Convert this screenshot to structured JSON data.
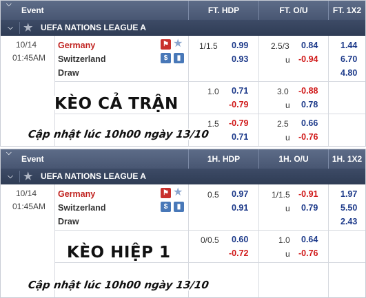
{
  "panels": [
    {
      "headers": [
        "Event",
        "FT. HDP",
        "FT. O/U",
        "FT. 1X2"
      ],
      "league": "UEFA NATIONS LEAGUE A",
      "match": {
        "date": "10/14",
        "time": "01:45AM",
        "home": "Germany",
        "away": "Switzerland",
        "draw": "Draw"
      },
      "rows": [
        {
          "hdp": "1/1.5",
          "hdp_home": "0.99",
          "hdp_away": "0.93",
          "ou": "2.5/3",
          "ou_over": "0.84",
          "ou_u": "u",
          "ou_under": "-0.94",
          "x1": "1.44",
          "x2": "6.70",
          "xd": "4.80"
        },
        {
          "hdp": "1.0",
          "hdp_home": "0.71",
          "hdp_away": "-0.79",
          "ou": "3.0",
          "ou_over": "-0.88",
          "ou_u": "u",
          "ou_under": "0.78"
        },
        {
          "hdp": "1.5",
          "hdp_home": "-0.79",
          "hdp_away": "0.71",
          "ou": "2.5",
          "ou_over": "0.66",
          "ou_u": "u",
          "ou_under": "-0.76"
        }
      ],
      "banner_main": "KÈO CẢ TRẬN",
      "banner_sub": "Cập nhật lúc 10h00 ngày 13/10"
    },
    {
      "headers": [
        "Event",
        "1H. HDP",
        "1H. O/U",
        "1H. 1X2"
      ],
      "league": "UEFA NATIONS LEAGUE A",
      "match": {
        "date": "10/14",
        "time": "01:45AM",
        "home": "Germany",
        "away": "Switzerland",
        "draw": "Draw"
      },
      "rows": [
        {
          "hdp": "0.5",
          "hdp_home": "0.97",
          "hdp_away": "0.91",
          "ou": "1/1.5",
          "ou_over": "-0.91",
          "ou_u": "u",
          "ou_under": "0.79",
          "x1": "1.97",
          "x2": "5.50",
          "xd": "2.43"
        },
        {
          "hdp": "0/0.5",
          "hdp_home": "0.60",
          "hdp_away": "-0.72",
          "ou": "1.0",
          "ou_over": "0.64",
          "ou_u": "u",
          "ou_under": "-0.76"
        }
      ],
      "banner_main": "KÈO HIỆP 1",
      "banner_sub": "Cập nhật lúc 10h00 ngày 13/10"
    }
  ],
  "icons": {
    "collapse": "chevron-down-icon",
    "favorite": "star-icon",
    "live": "runner-icon",
    "money": "dollar-icon",
    "stats": "bar-chart-icon"
  }
}
